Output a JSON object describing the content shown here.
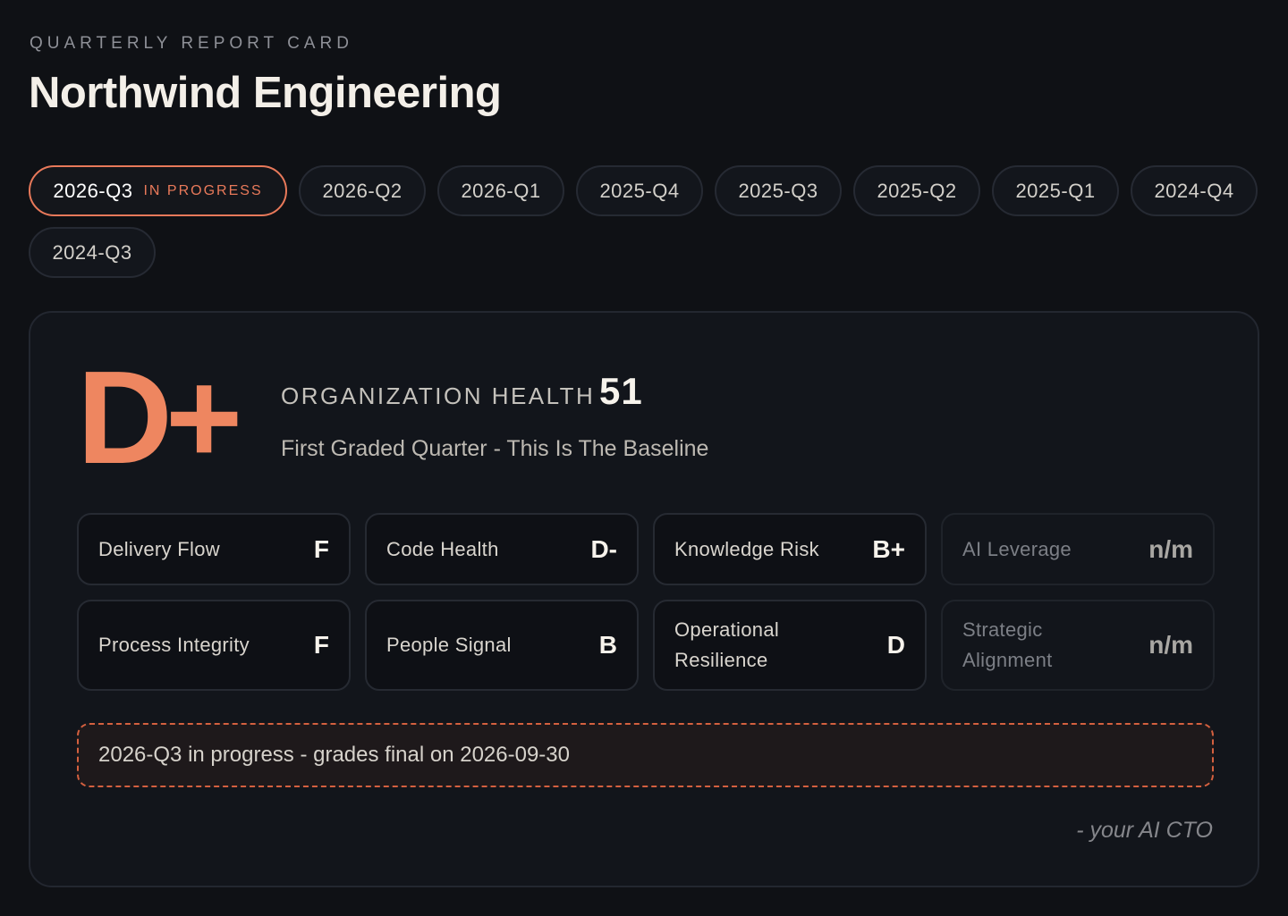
{
  "header": {
    "eyebrow": "QUARTERLY REPORT CARD",
    "title": "Northwind Engineering"
  },
  "quarters": [
    {
      "label": "2026-Q3",
      "badge": "IN PROGRESS",
      "active": true
    },
    {
      "label": "2026-Q2"
    },
    {
      "label": "2026-Q1"
    },
    {
      "label": "2025-Q4"
    },
    {
      "label": "2025-Q3"
    },
    {
      "label": "2025-Q2"
    },
    {
      "label": "2025-Q1"
    },
    {
      "label": "2024-Q4"
    },
    {
      "label": "2024-Q3"
    }
  ],
  "summary": {
    "grade": "D+",
    "health_label": "ORGANIZATION HEALTH",
    "health_score": "51",
    "subtitle": "First Graded Quarter - This Is The Baseline"
  },
  "metrics": [
    {
      "name": "Delivery Flow",
      "grade": "F"
    },
    {
      "name": "Code Health",
      "grade": "D-"
    },
    {
      "name": "Knowledge Risk",
      "grade": "B+"
    },
    {
      "name": "AI Leverage",
      "grade": "n/m"
    },
    {
      "name": "Process Integrity",
      "grade": "F"
    },
    {
      "name": "People Signal",
      "grade": "B"
    },
    {
      "name": "Operational Resilience",
      "grade": "D"
    },
    {
      "name": "Strategic Alignment",
      "grade": "n/m"
    }
  ],
  "notice": "2026-Q3 in progress - grades final on 2026-09-30",
  "signature": "- your AI CTO",
  "colors": {
    "accent": "#ee8660",
    "background": "#0f1115",
    "card": "#12151b"
  }
}
